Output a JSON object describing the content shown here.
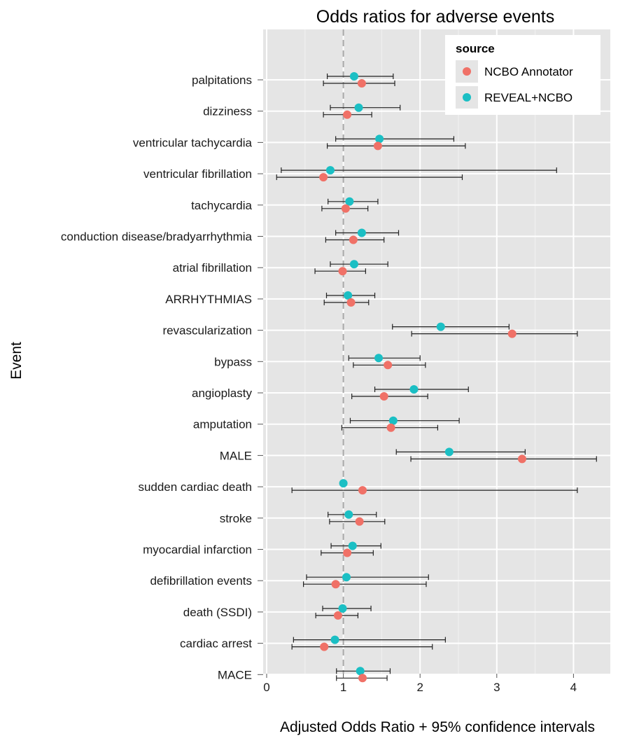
{
  "chart_data": {
    "type": "scatter",
    "title": "Odds ratios for adverse events",
    "xlabel": "Adjusted Odds Ratio + 95% confidence intervals",
    "ylabel": "Event",
    "xlim": [
      -0.05,
      4.5
    ],
    "xticks": [
      0,
      1,
      2,
      3,
      4
    ],
    "reference_line": 1,
    "grid": true,
    "legend_placement": "top-right",
    "legend_title": "source",
    "categories": [
      "palpitations",
      "dizziness",
      "ventricular tachycardia",
      "ventricular fibrillation",
      "tachycardia",
      "conduction disease/bradyarrhythmia",
      "atrial fibrillation",
      "ARRHYTHMIAS",
      "revascularization",
      "bypass",
      "angioplasty",
      "amputation",
      "MALE",
      "sudden cardiac death",
      "stroke",
      "myocardial infarction",
      "defibrillation events",
      "death (SSDI)",
      "cardiac arrest",
      "MACE"
    ],
    "series": [
      {
        "name": "REVEAL+NCBO",
        "color": "#1bbfc4",
        "or": [
          1.14,
          1.2,
          1.47,
          0.83,
          1.08,
          1.24,
          1.14,
          1.06,
          2.27,
          1.46,
          1.92,
          1.65,
          2.38,
          1.0,
          1.07,
          1.12,
          1.04,
          0.99,
          0.89,
          1.22
        ],
        "lower": [
          0.79,
          0.83,
          0.9,
          0.19,
          0.8,
          0.9,
          0.83,
          0.78,
          1.64,
          1.07,
          1.41,
          1.09,
          1.69,
          1.0,
          0.8,
          0.84,
          0.52,
          0.73,
          0.35,
          0.91
        ],
        "upper": [
          1.65,
          1.74,
          2.44,
          3.78,
          1.45,
          1.72,
          1.58,
          1.41,
          3.16,
          2.0,
          2.63,
          2.51,
          3.37,
          1.0,
          1.43,
          1.49,
          2.11,
          1.36,
          2.33,
          1.61
        ]
      },
      {
        "name": "NCBO Annotator",
        "color": "#f07167",
        "or": [
          1.24,
          1.05,
          1.45,
          0.74,
          1.03,
          1.13,
          0.99,
          1.1,
          3.2,
          1.58,
          1.53,
          1.62,
          3.33,
          1.25,
          1.21,
          1.05,
          0.9,
          0.93,
          0.75,
          1.25
        ],
        "lower": [
          0.74,
          0.74,
          0.79,
          0.13,
          0.72,
          0.77,
          0.63,
          0.75,
          1.89,
          1.13,
          1.11,
          0.98,
          1.88,
          0.33,
          0.82,
          0.71,
          0.48,
          0.64,
          0.33,
          0.91
        ],
        "upper": [
          1.67,
          1.37,
          2.59,
          2.55,
          1.32,
          1.53,
          1.29,
          1.33,
          4.05,
          2.07,
          2.1,
          2.23,
          4.3,
          4.05,
          1.54,
          1.39,
          2.08,
          1.19,
          2.16,
          1.57
        ]
      }
    ]
  }
}
